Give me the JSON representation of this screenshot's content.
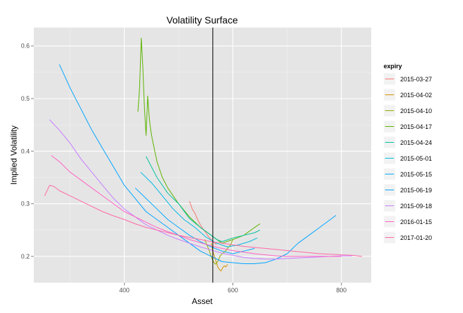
{
  "chart_data": {
    "type": "line",
    "title": "Volatility Surface",
    "xlabel": "Asset",
    "ylabel": "Implied Volatility",
    "xlim": [
      233,
      855
    ],
    "ylim": [
      0.15,
      0.635
    ],
    "xticks": [
      400,
      600,
      800
    ],
    "yticks": [
      0.2,
      0.3,
      0.4,
      0.5,
      0.6
    ],
    "xtick_labels": [
      "400",
      "600",
      "800"
    ],
    "ytick_labels": [
      "0.2",
      "0.3",
      "0.4",
      "0.5",
      "0.6"
    ],
    "vline_x": 563,
    "grid": true,
    "legend_title": "expiry",
    "legend_position": "right",
    "series": [
      {
        "name": "2015-03-27",
        "color": "#F8766D",
        "x": [
          520,
          525,
          530,
          535,
          540,
          545,
          550,
          555,
          560,
          565,
          570
        ],
        "y": [
          0.305,
          0.29,
          0.282,
          0.27,
          0.26,
          0.252,
          0.245,
          0.238,
          0.232,
          0.226,
          0.222
        ]
      },
      {
        "name": "2015-04-02",
        "color": "#D39200",
        "x": [
          560,
          563,
          566,
          569,
          572,
          575,
          578,
          581,
          584,
          587,
          590
        ],
        "y": [
          0.225,
          0.21,
          0.2,
          0.19,
          0.18,
          0.175,
          0.172,
          0.178,
          0.182,
          0.18,
          0.185
        ]
      },
      {
        "name": "2015-04-10",
        "color": "#93AA00",
        "x": [
          548,
          552,
          556,
          560,
          564,
          568,
          572,
          576,
          580,
          584,
          588,
          592,
          596,
          600
        ],
        "y": [
          0.232,
          0.222,
          0.212,
          0.2,
          0.19,
          0.185,
          0.19,
          0.2,
          0.205,
          0.208,
          0.212,
          0.218,
          0.222,
          0.232
        ]
      },
      {
        "name": "2015-04-17",
        "color": "#5BB300",
        "x": [
          425,
          428,
          431,
          434,
          437,
          440,
          443,
          446,
          450,
          460,
          470,
          480,
          500,
          520,
          540,
          560,
          580,
          600,
          620,
          640,
          650
        ],
        "y": [
          0.475,
          0.52,
          0.615,
          0.56,
          0.48,
          0.43,
          0.505,
          0.46,
          0.43,
          0.38,
          0.35,
          0.33,
          0.3,
          0.275,
          0.255,
          0.24,
          0.225,
          0.232,
          0.24,
          0.255,
          0.262
        ]
      },
      {
        "name": "2015-04-24",
        "color": "#00C19F",
        "x": [
          440,
          460,
          480,
          500,
          520,
          540,
          560,
          570,
          580,
          600,
          620,
          640,
          650
        ],
        "y": [
          0.39,
          0.35,
          0.32,
          0.3,
          0.272,
          0.255,
          0.24,
          0.232,
          0.228,
          0.235,
          0.24,
          0.245,
          0.25
        ]
      },
      {
        "name": "2015-05-01",
        "color": "#00B9E3",
        "x": [
          430,
          450,
          470,
          490,
          510,
          530,
          550,
          570,
          590,
          610,
          630,
          645
        ],
        "y": [
          0.36,
          0.34,
          0.315,
          0.29,
          0.27,
          0.255,
          0.237,
          0.225,
          0.218,
          0.222,
          0.228,
          0.235
        ]
      },
      {
        "name": "2015-05-15",
        "color": "#00A9FF",
        "x": [
          420,
          440,
          460,
          480,
          500,
          520,
          540,
          560,
          580,
          600,
          620,
          640
        ],
        "y": [
          0.33,
          0.31,
          0.29,
          0.27,
          0.255,
          0.24,
          0.228,
          0.218,
          0.21,
          0.205,
          0.21,
          0.215
        ]
      },
      {
        "name": "2015-06-19",
        "color": "#00A5FF",
        "x": [
          280,
          300,
          320,
          340,
          360,
          380,
          400,
          420,
          440,
          460,
          480,
          500,
          520,
          540,
          560,
          580,
          600,
          620,
          640,
          660,
          680,
          700,
          720,
          740,
          760,
          790
        ],
        "y": [
          0.565,
          0.52,
          0.48,
          0.44,
          0.405,
          0.37,
          0.335,
          0.31,
          0.285,
          0.27,
          0.255,
          0.24,
          0.225,
          0.21,
          0.2,
          0.19,
          0.188,
          0.186,
          0.186,
          0.188,
          0.195,
          0.205,
          0.225,
          0.24,
          0.255,
          0.278
        ]
      },
      {
        "name": "2015-09-18",
        "color": "#C77CFF",
        "x": [
          262,
          280,
          300,
          320,
          340,
          360,
          380,
          400,
          420,
          440,
          460,
          480,
          500,
          520,
          540,
          560,
          580,
          600,
          620,
          640,
          660,
          680,
          700,
          720,
          740,
          760,
          780,
          800,
          820
        ],
        "y": [
          0.46,
          0.44,
          0.415,
          0.385,
          0.36,
          0.335,
          0.31,
          0.29,
          0.275,
          0.26,
          0.25,
          0.24,
          0.232,
          0.225,
          0.218,
          0.212,
          0.206,
          0.202,
          0.198,
          0.196,
          0.195,
          0.195,
          0.196,
          0.197,
          0.198,
          0.199,
          0.2,
          0.201,
          0.201
        ]
      },
      {
        "name": "2016-01-15",
        "color": "#FF61C3",
        "x": [
          265,
          280,
          300,
          320,
          340,
          360,
          380,
          400,
          420,
          440,
          460,
          480,
          500,
          520,
          540,
          560,
          580,
          600,
          620,
          640,
          660,
          680,
          700,
          720,
          740,
          760,
          780,
          800
        ],
        "y": [
          0.392,
          0.38,
          0.36,
          0.345,
          0.33,
          0.315,
          0.3,
          0.285,
          0.275,
          0.265,
          0.255,
          0.247,
          0.24,
          0.232,
          0.226,
          0.22,
          0.215,
          0.211,
          0.208,
          0.205,
          0.203,
          0.201,
          0.2,
          0.2,
          0.2,
          0.2,
          0.2,
          0.2
        ]
      },
      {
        "name": "2017-01-20",
        "color": "#FF67A4",
        "x": [
          253,
          262,
          270,
          280,
          300,
          320,
          340,
          360,
          380,
          400,
          420,
          440,
          460,
          480,
          500,
          520,
          540,
          560,
          580,
          600,
          620,
          640,
          660,
          680,
          700,
          720,
          740,
          760,
          780,
          800,
          820,
          838
        ],
        "y": [
          0.315,
          0.335,
          0.333,
          0.325,
          0.315,
          0.305,
          0.295,
          0.285,
          0.277,
          0.27,
          0.262,
          0.255,
          0.25,
          0.245,
          0.24,
          0.236,
          0.232,
          0.228,
          0.225,
          0.222,
          0.219,
          0.217,
          0.215,
          0.213,
          0.211,
          0.209,
          0.207,
          0.205,
          0.204,
          0.203,
          0.202,
          0.2
        ]
      }
    ]
  }
}
